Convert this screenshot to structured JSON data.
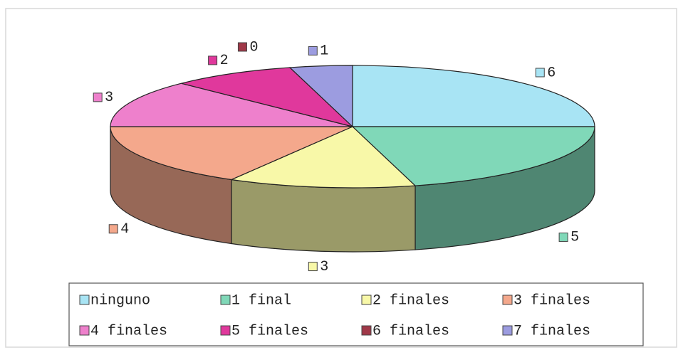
{
  "chart_data": {
    "type": "pie3d",
    "categories": [
      "ninguno",
      "1 final",
      "2 finales",
      "3 finales",
      "4 finales",
      "5 finales",
      "6 finales",
      "7 finales"
    ],
    "values": [
      6,
      5,
      3,
      4,
      3,
      2,
      0,
      1
    ],
    "colors": [
      "#a8e4f4",
      "#80d8b8",
      "#f8f8a8",
      "#f4a88c",
      "#ee80cc",
      "#e0389c",
      "#a03848",
      "#9c9ce0"
    ],
    "legend": "bottom"
  }
}
